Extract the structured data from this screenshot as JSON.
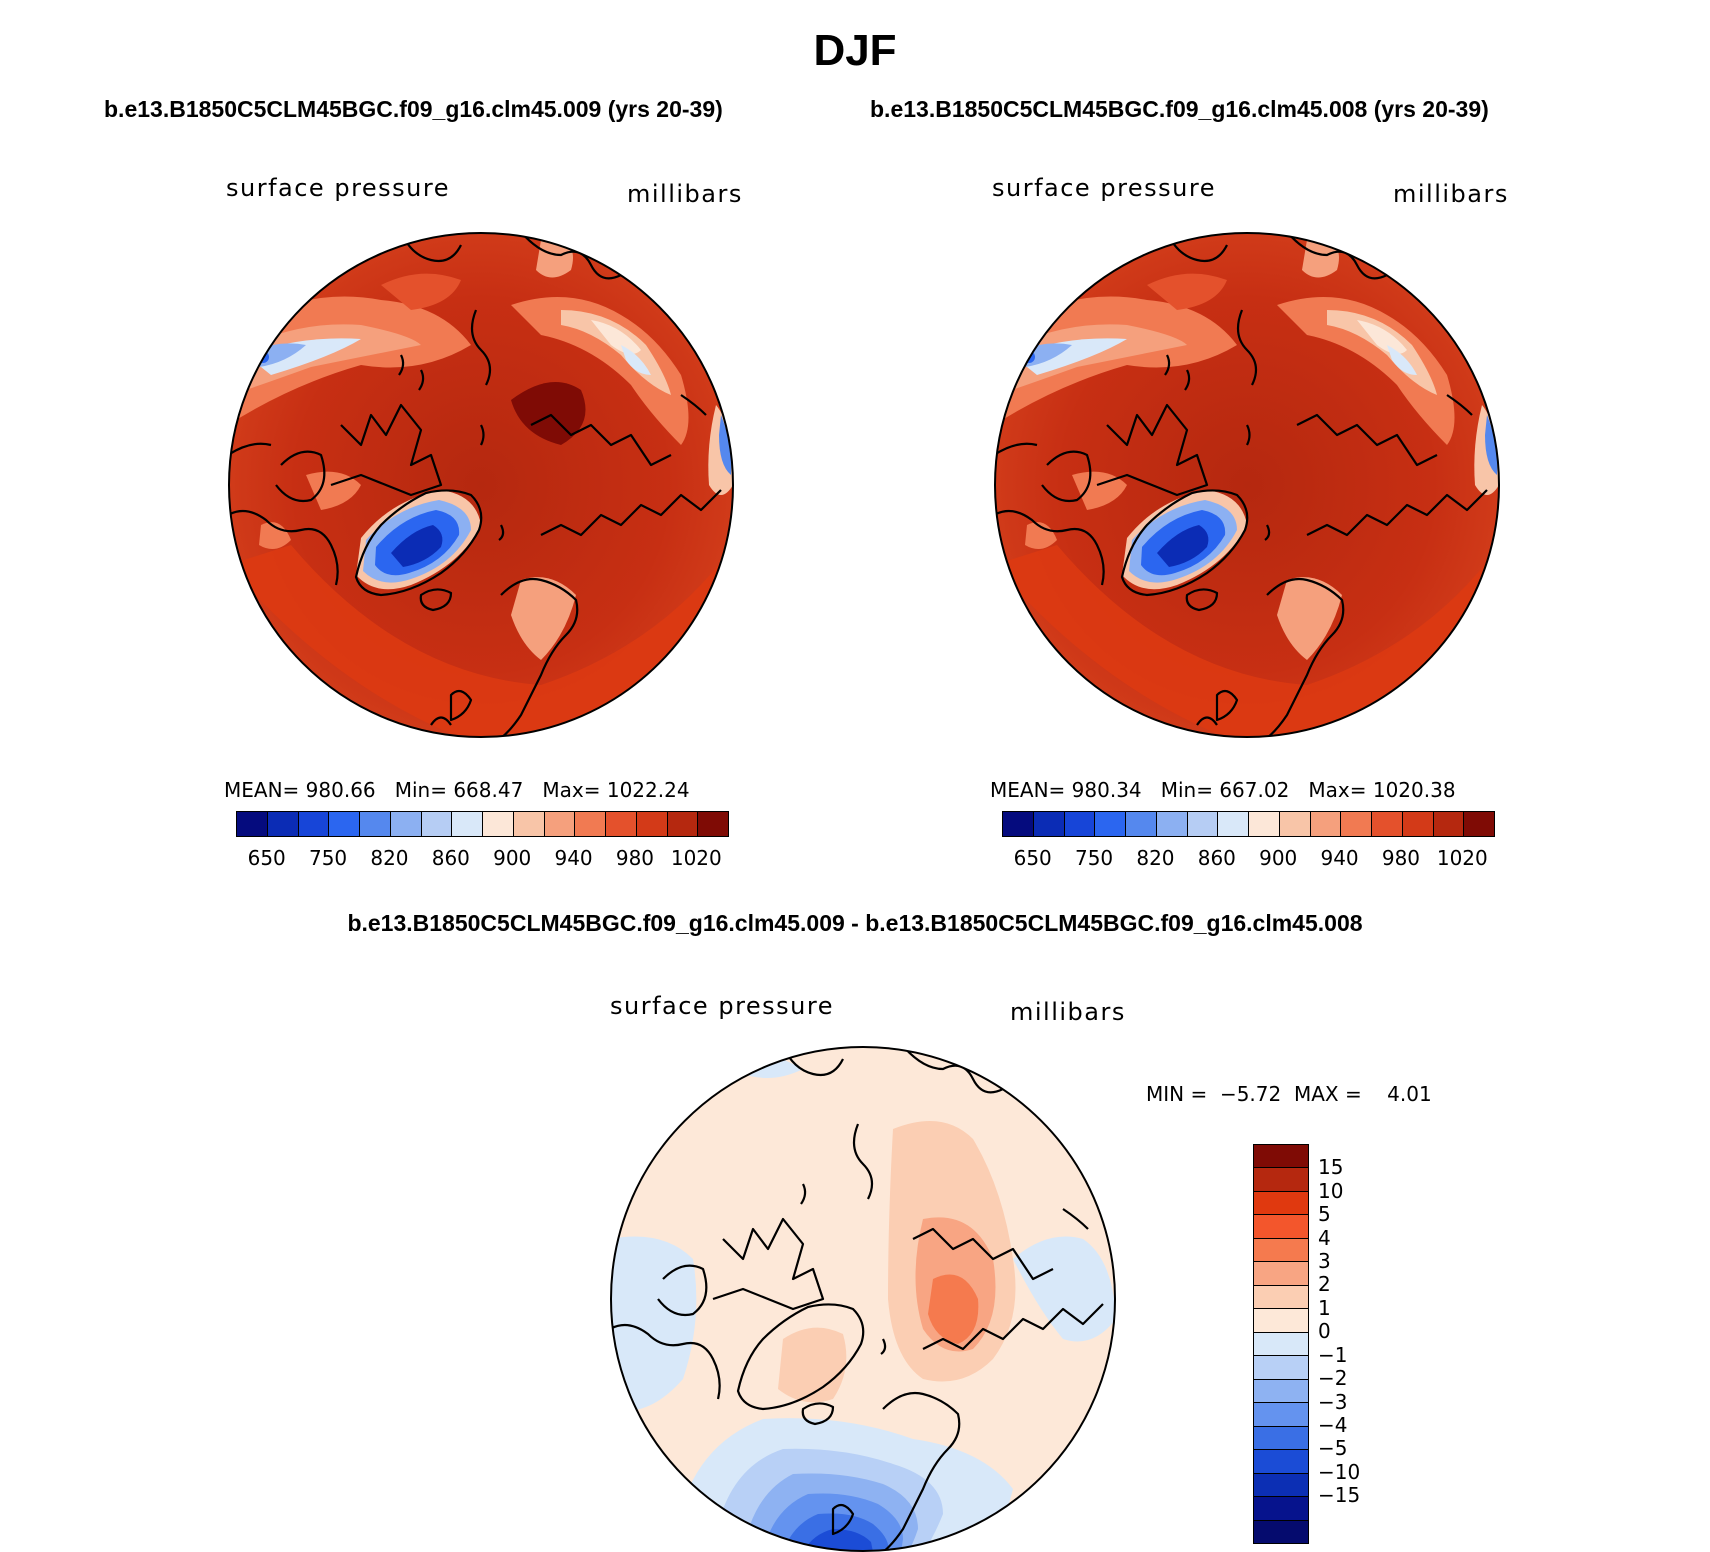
{
  "title": "DJF",
  "left_panel": {
    "case": "b.e13.B1850C5CLM45BGC.f09_g16.clm45.009 (yrs 20-39)",
    "variable": "surface pressure",
    "units": "millibars",
    "stats": {
      "mean_label": "MEAN=",
      "mean": "980.66",
      "min_label": "Min=",
      "min": "668.47",
      "max_label": "Max=",
      "max": "1022.24"
    }
  },
  "right_panel": {
    "case": "b.e13.B1850C5CLM45BGC.f09_g16.clm45.008 (yrs 20-39)",
    "variable": "surface pressure",
    "units": "millibars",
    "stats": {
      "mean_label": "MEAN=",
      "mean": "980.34",
      "min_label": "Min=",
      "min": "667.02",
      "max_label": "Max=",
      "max": "1020.38"
    }
  },
  "abs_colorbar": {
    "colors": [
      "#050b7e",
      "#0b2cb5",
      "#1745d8",
      "#2b66f0",
      "#5588ee",
      "#8cb0f2",
      "#b6cdf4",
      "#d9e8f9",
      "#fce7d8",
      "#f8c5a8",
      "#f5a07d",
      "#f17a52",
      "#e4512c",
      "#d33a18",
      "#b5280f",
      "#7f0b05"
    ],
    "labels": [
      "650",
      "750",
      "820",
      "860",
      "900",
      "940",
      "980",
      "1020"
    ]
  },
  "diff_panel": {
    "title": "b.e13.B1850C5CLM45BGC.f09_g16.clm45.009 - b.e13.B1850C5CLM45BGC.f09_g16.clm45.008",
    "variable": "surface pressure",
    "units": "millibars",
    "min_label": "MIN =",
    "min": "−5.72",
    "max_label": "MAX =",
    "max": "4.01"
  },
  "diff_colorbar": {
    "colors": [
      "#7f0b05",
      "#b5280f",
      "#e0390f",
      "#f3562c",
      "#f57a4e",
      "#f8a583",
      "#fbceb3",
      "#fde8d8",
      "#d8e8f9",
      "#b8d0f6",
      "#8eb2f2",
      "#6493ef",
      "#3a6fe5",
      "#1b4cd6",
      "#0c2fb4",
      "#06138d",
      "#050b6e"
    ],
    "labels": [
      "15",
      "10",
      "5",
      "4",
      "3",
      "2",
      "1",
      "0",
      "−1",
      "−2",
      "−3",
      "−4",
      "−5",
      "−10",
      "−15"
    ]
  }
}
